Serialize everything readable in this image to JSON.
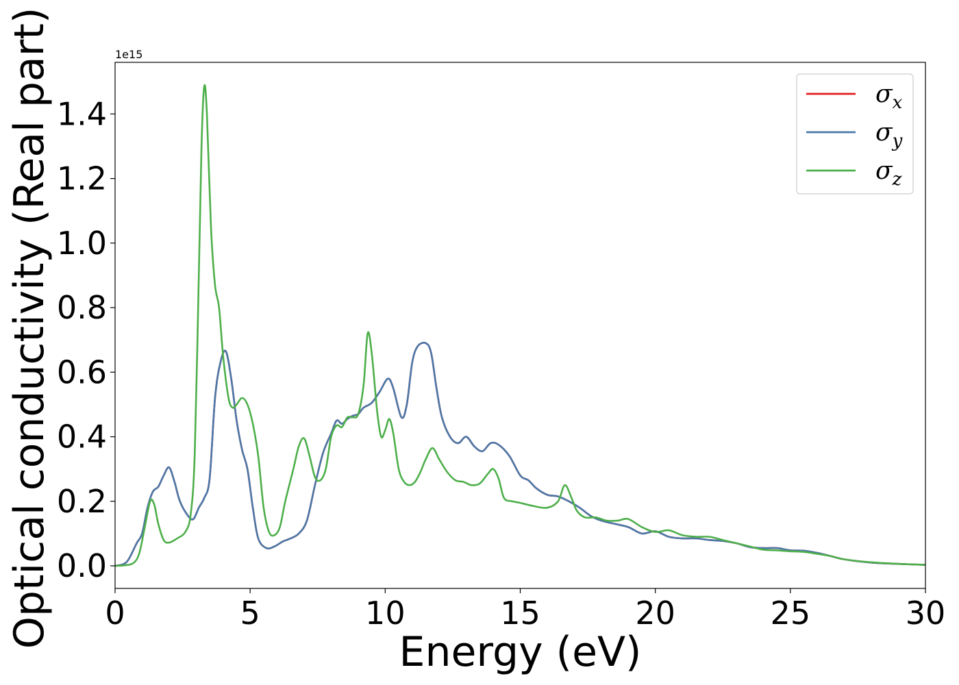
{
  "chart_data": {
    "type": "line",
    "title": "",
    "xlabel": "Energy (eV)",
    "ylabel": "Optical conductivity (Real part)",
    "y_offset_label": "1e15",
    "xlim": [
      0,
      30
    ],
    "ylim": [
      -0.07,
      1.56
    ],
    "x_ticks": [
      0,
      5,
      10,
      15,
      20,
      25,
      30
    ],
    "x_tick_labels": [
      "0",
      "5",
      "10",
      "15",
      "20",
      "25",
      "30"
    ],
    "y_ticks": [
      0.0,
      0.2,
      0.4,
      0.6,
      0.8,
      1.0,
      1.2,
      1.4
    ],
    "y_tick_labels": [
      "0.0",
      "0.2",
      "0.4",
      "0.6",
      "0.8",
      "1.0",
      "1.2",
      "1.4"
    ],
    "grid": false,
    "legend_position": "top-right",
    "series": [
      {
        "name": "σx",
        "legend_base": "σ",
        "legend_sub": "x",
        "color": "#e41a1c",
        "points": [
          [
            0,
            0
          ],
          [
            0.3,
            0.005
          ],
          [
            0.5,
            0.02
          ],
          [
            0.8,
            0.07
          ],
          [
            1.0,
            0.1
          ],
          [
            1.2,
            0.18
          ],
          [
            1.4,
            0.23
          ],
          [
            1.6,
            0.245
          ],
          [
            1.8,
            0.28
          ],
          [
            2.0,
            0.305
          ],
          [
            2.2,
            0.26
          ],
          [
            2.4,
            0.2
          ],
          [
            2.7,
            0.155
          ],
          [
            2.9,
            0.145
          ],
          [
            3.1,
            0.18
          ],
          [
            3.3,
            0.21
          ],
          [
            3.5,
            0.27
          ],
          [
            3.7,
            0.52
          ],
          [
            3.9,
            0.63
          ],
          [
            4.1,
            0.665
          ],
          [
            4.3,
            0.58
          ],
          [
            4.5,
            0.45
          ],
          [
            4.7,
            0.36
          ],
          [
            4.9,
            0.3
          ],
          [
            5.1,
            0.18
          ],
          [
            5.3,
            0.085
          ],
          [
            5.6,
            0.055
          ],
          [
            5.9,
            0.06
          ],
          [
            6.2,
            0.075
          ],
          [
            6.5,
            0.085
          ],
          [
            6.8,
            0.1
          ],
          [
            7.1,
            0.14
          ],
          [
            7.4,
            0.25
          ],
          [
            7.7,
            0.35
          ],
          [
            8.0,
            0.41
          ],
          [
            8.2,
            0.45
          ],
          [
            8.4,
            0.44
          ],
          [
            8.6,
            0.455
          ],
          [
            8.8,
            0.465
          ],
          [
            9.0,
            0.47
          ],
          [
            9.2,
            0.49
          ],
          [
            9.5,
            0.505
          ],
          [
            9.8,
            0.54
          ],
          [
            10.1,
            0.58
          ],
          [
            10.3,
            0.55
          ],
          [
            10.6,
            0.46
          ],
          [
            10.8,
            0.5
          ],
          [
            11.0,
            0.63
          ],
          [
            11.2,
            0.68
          ],
          [
            11.5,
            0.69
          ],
          [
            11.7,
            0.66
          ],
          [
            11.9,
            0.55
          ],
          [
            12.1,
            0.46
          ],
          [
            12.4,
            0.4
          ],
          [
            12.7,
            0.38
          ],
          [
            13.0,
            0.4
          ],
          [
            13.3,
            0.37
          ],
          [
            13.6,
            0.355
          ],
          [
            13.9,
            0.38
          ],
          [
            14.2,
            0.375
          ],
          [
            14.6,
            0.34
          ],
          [
            15.0,
            0.28
          ],
          [
            15.3,
            0.265
          ],
          [
            15.6,
            0.24
          ],
          [
            16.0,
            0.22
          ],
          [
            16.4,
            0.215
          ],
          [
            16.8,
            0.2
          ],
          [
            17.2,
            0.18
          ],
          [
            17.6,
            0.155
          ],
          [
            18.0,
            0.14
          ],
          [
            18.5,
            0.13
          ],
          [
            19.0,
            0.12
          ],
          [
            19.5,
            0.1
          ],
          [
            20.0,
            0.107
          ],
          [
            20.5,
            0.09
          ],
          [
            21.0,
            0.085
          ],
          [
            21.5,
            0.085
          ],
          [
            22.0,
            0.08
          ],
          [
            22.5,
            0.077
          ],
          [
            23.0,
            0.07
          ],
          [
            23.5,
            0.058
          ],
          [
            24.0,
            0.055
          ],
          [
            24.5,
            0.055
          ],
          [
            25.0,
            0.048
          ],
          [
            25.5,
            0.047
          ],
          [
            26.0,
            0.04
          ],
          [
            26.5,
            0.03
          ],
          [
            27.0,
            0.02
          ],
          [
            28.0,
            0.01
          ],
          [
            29.0,
            0.006
          ],
          [
            30.0,
            0.003
          ]
        ]
      },
      {
        "name": "σy",
        "legend_base": "σ",
        "legend_sub": "y",
        "color": "#4a78a8",
        "points": [
          [
            0,
            0
          ],
          [
            0.3,
            0.005
          ],
          [
            0.5,
            0.02
          ],
          [
            0.8,
            0.07
          ],
          [
            1.0,
            0.1
          ],
          [
            1.2,
            0.18
          ],
          [
            1.4,
            0.23
          ],
          [
            1.6,
            0.245
          ],
          [
            1.8,
            0.28
          ],
          [
            2.0,
            0.305
          ],
          [
            2.2,
            0.26
          ],
          [
            2.4,
            0.2
          ],
          [
            2.7,
            0.155
          ],
          [
            2.9,
            0.145
          ],
          [
            3.1,
            0.18
          ],
          [
            3.3,
            0.21
          ],
          [
            3.5,
            0.27
          ],
          [
            3.7,
            0.52
          ],
          [
            3.9,
            0.63
          ],
          [
            4.1,
            0.665
          ],
          [
            4.3,
            0.58
          ],
          [
            4.5,
            0.45
          ],
          [
            4.7,
            0.36
          ],
          [
            4.9,
            0.3
          ],
          [
            5.1,
            0.18
          ],
          [
            5.3,
            0.085
          ],
          [
            5.6,
            0.055
          ],
          [
            5.9,
            0.06
          ],
          [
            6.2,
            0.075
          ],
          [
            6.5,
            0.085
          ],
          [
            6.8,
            0.1
          ],
          [
            7.1,
            0.14
          ],
          [
            7.4,
            0.25
          ],
          [
            7.7,
            0.35
          ],
          [
            8.0,
            0.41
          ],
          [
            8.2,
            0.45
          ],
          [
            8.4,
            0.44
          ],
          [
            8.6,
            0.455
          ],
          [
            8.8,
            0.465
          ],
          [
            9.0,
            0.47
          ],
          [
            9.2,
            0.49
          ],
          [
            9.5,
            0.505
          ],
          [
            9.8,
            0.54
          ],
          [
            10.1,
            0.58
          ],
          [
            10.3,
            0.55
          ],
          [
            10.6,
            0.46
          ],
          [
            10.8,
            0.5
          ],
          [
            11.0,
            0.63
          ],
          [
            11.2,
            0.68
          ],
          [
            11.5,
            0.69
          ],
          [
            11.7,
            0.66
          ],
          [
            11.9,
            0.55
          ],
          [
            12.1,
            0.46
          ],
          [
            12.4,
            0.4
          ],
          [
            12.7,
            0.38
          ],
          [
            13.0,
            0.4
          ],
          [
            13.3,
            0.37
          ],
          [
            13.6,
            0.355
          ],
          [
            13.9,
            0.38
          ],
          [
            14.2,
            0.375
          ],
          [
            14.6,
            0.34
          ],
          [
            15.0,
            0.28
          ],
          [
            15.3,
            0.265
          ],
          [
            15.6,
            0.24
          ],
          [
            16.0,
            0.22
          ],
          [
            16.4,
            0.215
          ],
          [
            16.8,
            0.2
          ],
          [
            17.2,
            0.18
          ],
          [
            17.6,
            0.155
          ],
          [
            18.0,
            0.14
          ],
          [
            18.5,
            0.13
          ],
          [
            19.0,
            0.12
          ],
          [
            19.5,
            0.1
          ],
          [
            20.0,
            0.107
          ],
          [
            20.5,
            0.09
          ],
          [
            21.0,
            0.085
          ],
          [
            21.5,
            0.085
          ],
          [
            22.0,
            0.08
          ],
          [
            22.5,
            0.077
          ],
          [
            23.0,
            0.07
          ],
          [
            23.5,
            0.058
          ],
          [
            24.0,
            0.055
          ],
          [
            24.5,
            0.055
          ],
          [
            25.0,
            0.048
          ],
          [
            25.5,
            0.047
          ],
          [
            26.0,
            0.04
          ],
          [
            26.5,
            0.03
          ],
          [
            27.0,
            0.02
          ],
          [
            28.0,
            0.01
          ],
          [
            29.0,
            0.006
          ],
          [
            30.0,
            0.003
          ]
        ]
      },
      {
        "name": "σz",
        "legend_base": "σ",
        "legend_sub": "z",
        "color": "#4daf4a",
        "points": [
          [
            0,
            0
          ],
          [
            0.4,
            0.002
          ],
          [
            0.7,
            0.01
          ],
          [
            0.9,
            0.04
          ],
          [
            1.1,
            0.12
          ],
          [
            1.3,
            0.2
          ],
          [
            1.45,
            0.19
          ],
          [
            1.6,
            0.13
          ],
          [
            1.8,
            0.08
          ],
          [
            2.0,
            0.072
          ],
          [
            2.3,
            0.085
          ],
          [
            2.6,
            0.105
          ],
          [
            2.8,
            0.16
          ],
          [
            2.95,
            0.35
          ],
          [
            3.1,
            0.9
          ],
          [
            3.2,
            1.3
          ],
          [
            3.3,
            1.485
          ],
          [
            3.4,
            1.4
          ],
          [
            3.55,
            1.05
          ],
          [
            3.7,
            0.87
          ],
          [
            3.85,
            0.8
          ],
          [
            4.0,
            0.65
          ],
          [
            4.2,
            0.52
          ],
          [
            4.35,
            0.49
          ],
          [
            4.5,
            0.5
          ],
          [
            4.7,
            0.52
          ],
          [
            4.9,
            0.5
          ],
          [
            5.1,
            0.44
          ],
          [
            5.3,
            0.34
          ],
          [
            5.5,
            0.18
          ],
          [
            5.7,
            0.105
          ],
          [
            5.9,
            0.095
          ],
          [
            6.1,
            0.12
          ],
          [
            6.3,
            0.2
          ],
          [
            6.6,
            0.3
          ],
          [
            6.8,
            0.37
          ],
          [
            7.0,
            0.395
          ],
          [
            7.2,
            0.34
          ],
          [
            7.4,
            0.275
          ],
          [
            7.6,
            0.265
          ],
          [
            7.8,
            0.3
          ],
          [
            8.0,
            0.4
          ],
          [
            8.2,
            0.435
          ],
          [
            8.4,
            0.43
          ],
          [
            8.6,
            0.46
          ],
          [
            8.8,
            0.46
          ],
          [
            9.0,
            0.47
          ],
          [
            9.2,
            0.56
          ],
          [
            9.35,
            0.72
          ],
          [
            9.5,
            0.66
          ],
          [
            9.7,
            0.48
          ],
          [
            9.85,
            0.4
          ],
          [
            10.0,
            0.42
          ],
          [
            10.15,
            0.455
          ],
          [
            10.3,
            0.41
          ],
          [
            10.5,
            0.3
          ],
          [
            10.7,
            0.26
          ],
          [
            10.9,
            0.25
          ],
          [
            11.1,
            0.26
          ],
          [
            11.3,
            0.29
          ],
          [
            11.5,
            0.33
          ],
          [
            11.75,
            0.365
          ],
          [
            12.0,
            0.33
          ],
          [
            12.3,
            0.29
          ],
          [
            12.6,
            0.265
          ],
          [
            12.9,
            0.26
          ],
          [
            13.2,
            0.25
          ],
          [
            13.5,
            0.255
          ],
          [
            13.8,
            0.285
          ],
          [
            14.0,
            0.3
          ],
          [
            14.2,
            0.27
          ],
          [
            14.4,
            0.21
          ],
          [
            14.7,
            0.2
          ],
          [
            15.0,
            0.195
          ],
          [
            15.5,
            0.185
          ],
          [
            16.0,
            0.18
          ],
          [
            16.4,
            0.2
          ],
          [
            16.65,
            0.25
          ],
          [
            16.9,
            0.21
          ],
          [
            17.1,
            0.17
          ],
          [
            17.4,
            0.15
          ],
          [
            17.8,
            0.15
          ],
          [
            18.2,
            0.14
          ],
          [
            18.6,
            0.14
          ],
          [
            19.0,
            0.145
          ],
          [
            19.5,
            0.12
          ],
          [
            20.0,
            0.105
          ],
          [
            20.5,
            0.11
          ],
          [
            21.0,
            0.095
          ],
          [
            21.5,
            0.09
          ],
          [
            22.0,
            0.09
          ],
          [
            22.5,
            0.08
          ],
          [
            23.0,
            0.07
          ],
          [
            23.5,
            0.06
          ],
          [
            24.0,
            0.05
          ],
          [
            24.5,
            0.048
          ],
          [
            25.0,
            0.045
          ],
          [
            25.5,
            0.043
          ],
          [
            26.0,
            0.037
          ],
          [
            26.5,
            0.03
          ],
          [
            27.0,
            0.02
          ],
          [
            28.0,
            0.011
          ],
          [
            29.0,
            0.006
          ],
          [
            30.0,
            0.003
          ]
        ]
      }
    ]
  }
}
